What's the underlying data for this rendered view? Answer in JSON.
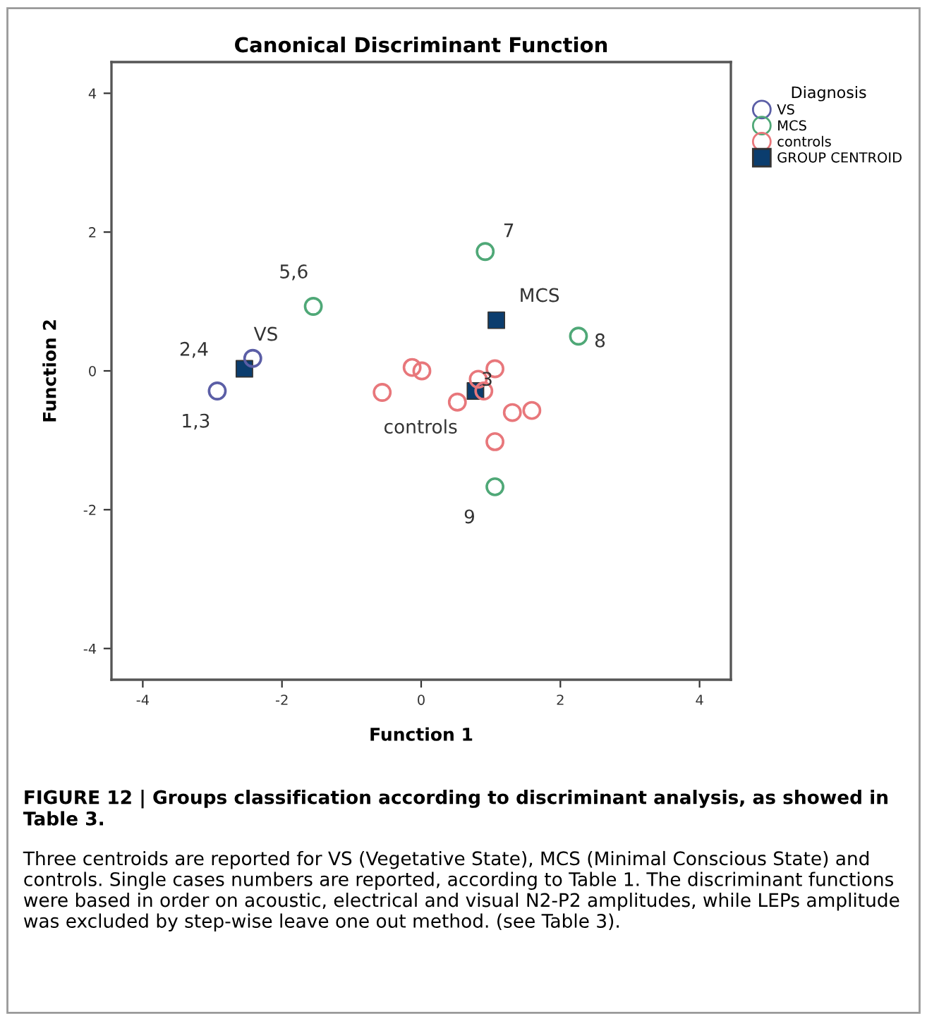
{
  "chart_data": {
    "type": "scatter",
    "title": "Canonical Discriminant Function",
    "xlabel": "Function 1",
    "ylabel": "Function 2",
    "legend_title": "Diagnosis",
    "xlim": [
      -4.45,
      4.45
    ],
    "ylim": [
      -4.45,
      4.45
    ],
    "xticks": [
      -4,
      -2,
      0,
      2,
      4
    ],
    "yticks": [
      -4,
      -2,
      0,
      2,
      4
    ],
    "grid": false,
    "legend": "right",
    "series": [
      {
        "name": "VS",
        "color": "#5b5ea6",
        "marker": "circle",
        "x": [
          -2.93,
          -2.42
        ],
        "values": [
          -0.29,
          0.18
        ]
      },
      {
        "name": "MCS",
        "color": "#4fa877",
        "marker": "circle",
        "x": [
          -1.55,
          0.92,
          2.26,
          1.06
        ],
        "values": [
          0.93,
          1.72,
          0.5,
          -1.67
        ]
      },
      {
        "name": "controls",
        "color": "#e8777b",
        "marker": "circle",
        "x": [
          -0.56,
          -0.13,
          0.01,
          0.52,
          0.82,
          0.9,
          1.06,
          1.31,
          1.59,
          1.06
        ],
        "values": [
          -0.31,
          0.05,
          0.0,
          -0.45,
          -0.12,
          -0.29,
          0.03,
          -0.6,
          -0.57,
          -1.02
        ]
      },
      {
        "name": "GROUP CENTROID",
        "color": "#0b3d6e",
        "marker": "square",
        "x": [
          -2.54,
          1.08,
          0.78
        ],
        "values": [
          0.03,
          0.73,
          -0.29
        ]
      }
    ],
    "annotations": [
      {
        "text": "1,3",
        "x": -2.93,
        "y": -0.29
      },
      {
        "text": "2,4",
        "x": -2.42,
        "y": 0.18
      },
      {
        "text": "VS",
        "x": -2.54,
        "y": 0.03
      },
      {
        "text": "5,6",
        "x": -1.55,
        "y": 0.93
      },
      {
        "text": "7",
        "x": 0.92,
        "y": 1.72
      },
      {
        "text": "MCS",
        "x": 1.08,
        "y": 0.73
      },
      {
        "text": "8",
        "x": 2.26,
        "y": 0.5
      },
      {
        "text": "3",
        "x": 1.06,
        "y": 0.03
      },
      {
        "text": "controls",
        "x": 0.78,
        "y": -0.29
      },
      {
        "text": "9",
        "x": 1.06,
        "y": -1.67
      },
      "FIGURE 12 | Groups classification according to discriminant analysis, as showed in Table 3.",
      "Three centroids are reported for VS (Vegetative State), MCS (Minimal Conscious State) and controls. Single cases numbers are reported, according to Table 1. The discriminant functions were based in order on acoustic, electrical and visual N2-P2 amplitudes, while LEPs amplitude was excluded by step-wise leave one out method. (see Table 3)."
    ]
  }
}
